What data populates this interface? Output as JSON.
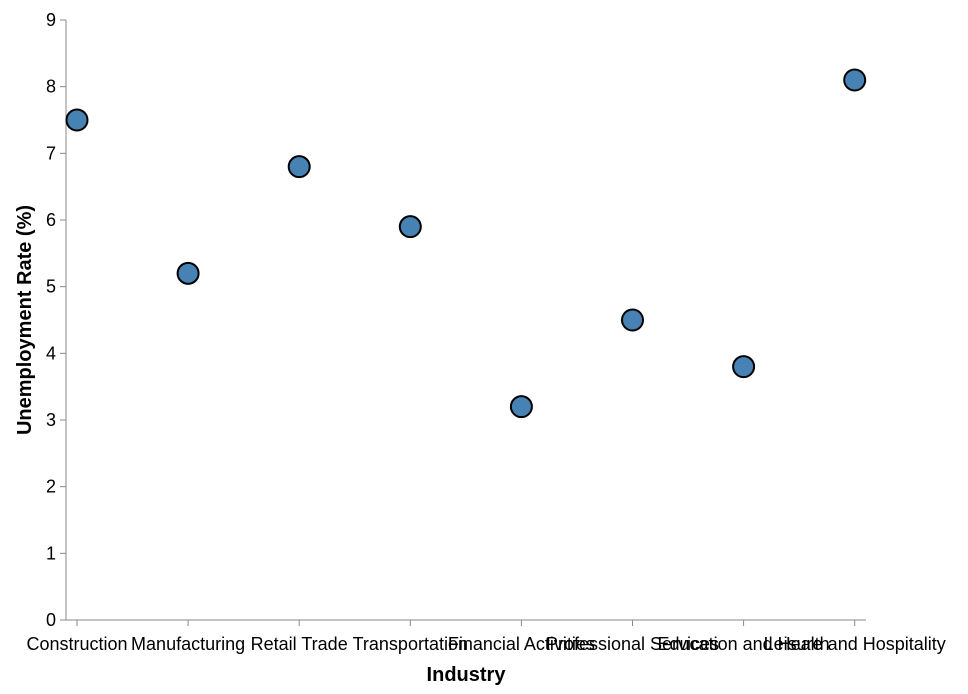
{
  "chart_data": {
    "type": "scatter",
    "title": "",
    "xlabel": "Industry",
    "ylabel": "Unemployment Rate (%)",
    "categories": [
      "Construction",
      "Manufacturing",
      "Retail Trade",
      "Transportation",
      "Financial Activities",
      "Professional Services",
      "Education and Health",
      "Leisure and Hospitality"
    ],
    "values": [
      7.5,
      5.2,
      6.8,
      5.9,
      3.2,
      4.5,
      3.8,
      8.1
    ],
    "ylim": [
      0,
      9
    ],
    "yticks": [
      "0",
      "1",
      "2",
      "3",
      "4",
      "5",
      "6",
      "7",
      "8",
      "9"
    ],
    "grid": false,
    "point_color": "#4682b4",
    "point_stroke": "#000000",
    "axis_color": "#888888"
  }
}
